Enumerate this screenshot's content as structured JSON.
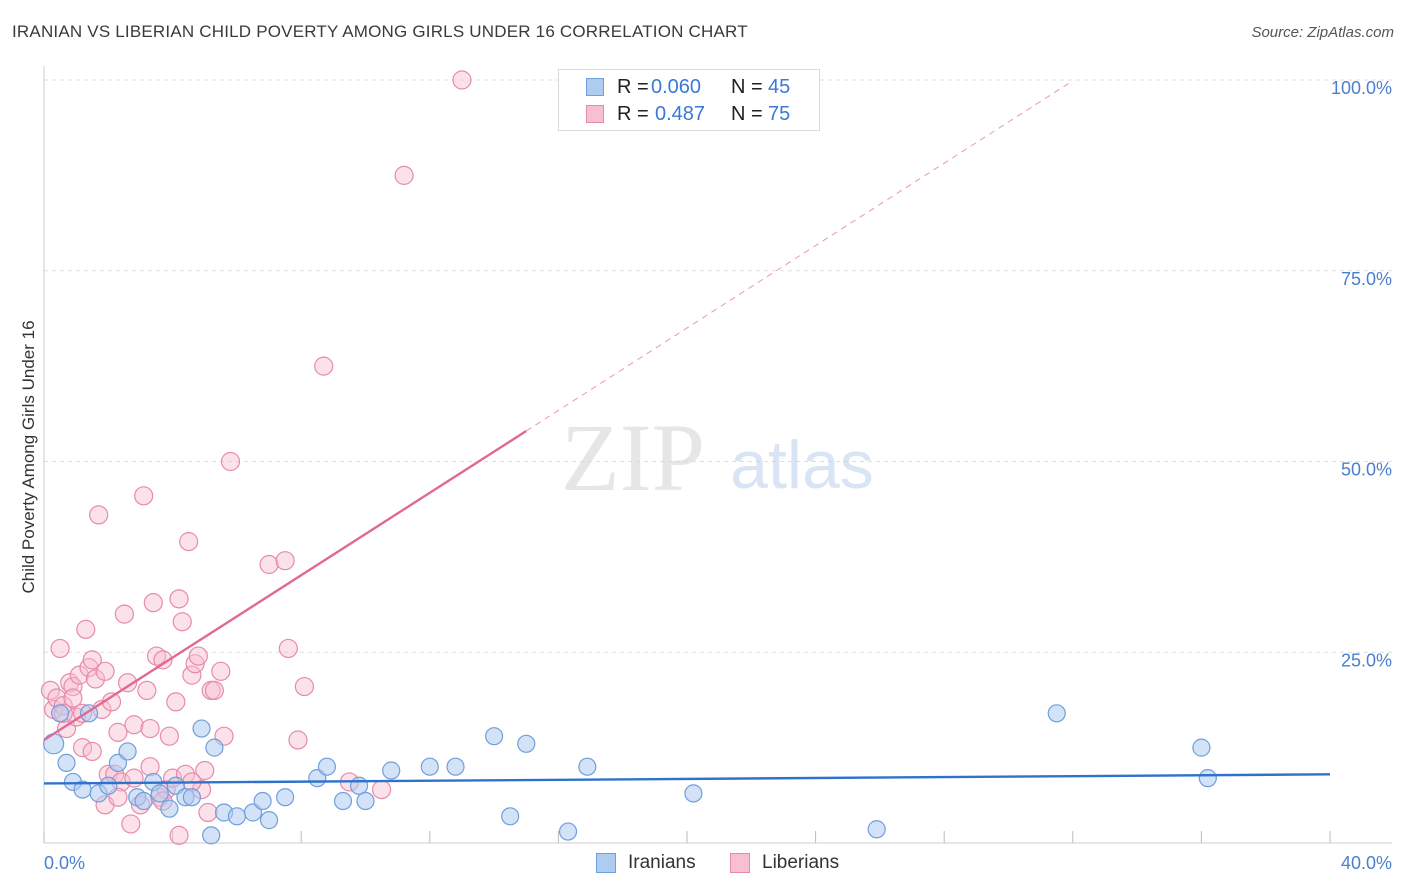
{
  "title": "IRANIAN VS LIBERIAN CHILD POVERTY AMONG GIRLS UNDER 16 CORRELATION CHART",
  "source": "Source: ZipAtlas.com",
  "watermark": {
    "zip": "ZIP",
    "atlas": "atlas"
  },
  "legend": {
    "iranians": {
      "r_label": "R =",
      "r_value": "0.060",
      "n_label": "N =",
      "n_value": "45"
    },
    "liberians": {
      "r_label": "R =",
      "r_value": "0.487",
      "n_label": "N =",
      "n_value": "75"
    }
  },
  "bottom_legend": {
    "iranians": "Iranians",
    "liberians": "Liberians"
  },
  "colors": {
    "iranians_fill": "#aecbf0",
    "iranians_stroke": "#6f9fdc",
    "iranians_line": "#2f72cc",
    "liberians_fill": "#f7bfd1",
    "liberians_stroke": "#e88aa9",
    "liberians_line": "#e06a93",
    "axis_text": "#4a7fd0",
    "grid": "#dddddd"
  },
  "chart_data": {
    "type": "scatter",
    "title": "IRANIAN VS LIBERIAN CHILD POVERTY AMONG GIRLS UNDER 16 CORRELATION CHART",
    "xlabel": "",
    "ylabel": "Child Poverty Among Girls Under 16",
    "xlim": [
      0,
      40
    ],
    "ylim": [
      0,
      100
    ],
    "x_tick_labels": [
      "0.0%",
      "40.0%"
    ],
    "y_tick_labels": [
      "25.0%",
      "50.0%",
      "75.0%",
      "100.0%"
    ],
    "y_ticks": [
      25,
      50,
      75,
      100
    ],
    "series": [
      {
        "name": "Iranians",
        "r": 0.06,
        "n": 45,
        "trend": {
          "x0": 0,
          "y0": 7.8,
          "x1": 40,
          "y1": 9.0,
          "dashed_to": 40
        },
        "points": [
          [
            0.3,
            13
          ],
          [
            0.5,
            17
          ],
          [
            0.7,
            10.5
          ],
          [
            0.9,
            8
          ],
          [
            1.2,
            7
          ],
          [
            1.4,
            17
          ],
          [
            1.7,
            6.5
          ],
          [
            2.0,
            7.5
          ],
          [
            2.3,
            10.5
          ],
          [
            2.6,
            12
          ],
          [
            2.9,
            6
          ],
          [
            3.1,
            5.5
          ],
          [
            3.4,
            8
          ],
          [
            3.6,
            6.5
          ],
          [
            3.9,
            4.5
          ],
          [
            4.1,
            7.5
          ],
          [
            4.4,
            6
          ],
          [
            4.6,
            6
          ],
          [
            4.9,
            15
          ],
          [
            5.3,
            12.5
          ],
          [
            5.6,
            4
          ],
          [
            6.0,
            3.5
          ],
          [
            6.5,
            4
          ],
          [
            6.8,
            5.5
          ],
          [
            7.0,
            3
          ],
          [
            7.5,
            6
          ],
          [
            8.5,
            8.5
          ],
          [
            8.8,
            10
          ],
          [
            9.3,
            5.5
          ],
          [
            9.8,
            7.5
          ],
          [
            10.0,
            5.5
          ],
          [
            10.8,
            9.5
          ],
          [
            12.0,
            10
          ],
          [
            12.8,
            10
          ],
          [
            14.0,
            14
          ],
          [
            14.5,
            3.5
          ],
          [
            15.0,
            13
          ],
          [
            16.3,
            1.5
          ],
          [
            16.9,
            10
          ],
          [
            20.2,
            6.5
          ],
          [
            25.9,
            1.8
          ],
          [
            31.5,
            17
          ],
          [
            36.0,
            12.5
          ],
          [
            36.2,
            8.5
          ],
          [
            5.2,
            1
          ]
        ]
      },
      {
        "name": "Liberians",
        "r": 0.487,
        "n": 75,
        "trend": {
          "x0": 0,
          "y0": 13.5,
          "x1": 15,
          "y1": 54,
          "dashed_to": 32
        },
        "points": [
          [
            0.2,
            20
          ],
          [
            0.3,
            17.5
          ],
          [
            0.4,
            19
          ],
          [
            0.5,
            25.5
          ],
          [
            0.6,
            18
          ],
          [
            0.7,
            15
          ],
          [
            0.8,
            21
          ],
          [
            0.9,
            20.5
          ],
          [
            1.0,
            16.5
          ],
          [
            1.1,
            22
          ],
          [
            1.2,
            17
          ],
          [
            1.3,
            28
          ],
          [
            1.4,
            23
          ],
          [
            1.5,
            24
          ],
          [
            1.6,
            21.5
          ],
          [
            1.7,
            43
          ],
          [
            1.8,
            17.5
          ],
          [
            1.9,
            22.5
          ],
          [
            2.0,
            9
          ],
          [
            2.1,
            18.5
          ],
          [
            2.2,
            9
          ],
          [
            2.3,
            14.5
          ],
          [
            2.4,
            8
          ],
          [
            2.5,
            30
          ],
          [
            2.6,
            21
          ],
          [
            2.7,
            2.5
          ],
          [
            2.8,
            15.5
          ],
          [
            3.0,
            5
          ],
          [
            3.1,
            45.5
          ],
          [
            3.2,
            20
          ],
          [
            3.3,
            15
          ],
          [
            3.4,
            31.5
          ],
          [
            3.5,
            24.5
          ],
          [
            3.6,
            6
          ],
          [
            3.7,
            24
          ],
          [
            3.8,
            7
          ],
          [
            3.9,
            14
          ],
          [
            4.0,
            8.5
          ],
          [
            4.1,
            18.5
          ],
          [
            4.2,
            32
          ],
          [
            4.3,
            29
          ],
          [
            4.4,
            9
          ],
          [
            4.5,
            39.5
          ],
          [
            4.6,
            22
          ],
          [
            4.7,
            23.5
          ],
          [
            4.8,
            24.5
          ],
          [
            4.9,
            7
          ],
          [
            5.0,
            9.5
          ],
          [
            5.2,
            20
          ],
          [
            5.3,
            20
          ],
          [
            5.5,
            22.5
          ],
          [
            5.6,
            14
          ],
          [
            5.8,
            50
          ],
          [
            7.0,
            36.5
          ],
          [
            7.5,
            37
          ],
          [
            7.6,
            25.5
          ],
          [
            7.9,
            13.5
          ],
          [
            8.1,
            20.5
          ],
          [
            8.7,
            62.5
          ],
          [
            9.5,
            8
          ],
          [
            10.5,
            7
          ],
          [
            11.2,
            87.5
          ],
          [
            13.0,
            100
          ],
          [
            0.6,
            17
          ],
          [
            0.9,
            19
          ],
          [
            1.2,
            12.5
          ],
          [
            1.5,
            12
          ],
          [
            1.9,
            5
          ],
          [
            2.3,
            6
          ],
          [
            2.8,
            8.5
          ],
          [
            3.3,
            10
          ],
          [
            3.7,
            5.5
          ],
          [
            4.2,
            1
          ],
          [
            4.6,
            8
          ],
          [
            5.1,
            4
          ]
        ]
      }
    ]
  }
}
